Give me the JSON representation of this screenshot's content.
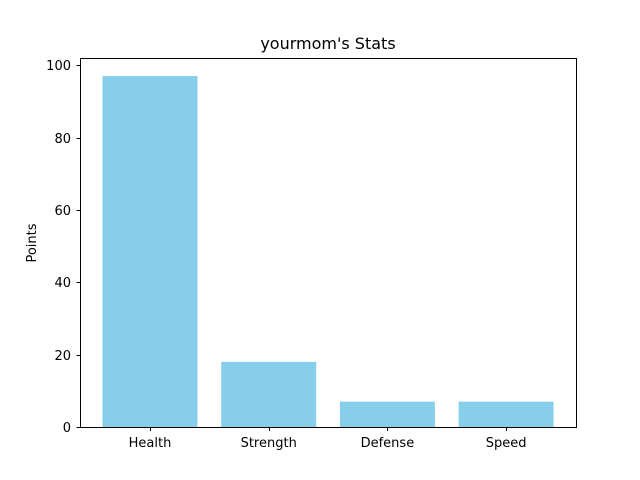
{
  "chart_data": {
    "type": "bar",
    "title": "yourmom's Stats",
    "xlabel": "",
    "ylabel": "Points",
    "categories": [
      "Health",
      "Strength",
      "Defense",
      "Speed"
    ],
    "values": [
      97,
      18,
      7,
      7
    ],
    "ylim": [
      0,
      102
    ],
    "yticks": [
      0,
      20,
      40,
      60,
      80,
      100
    ],
    "grid": false,
    "legend": "none",
    "bar_color": "#87ceeb"
  }
}
